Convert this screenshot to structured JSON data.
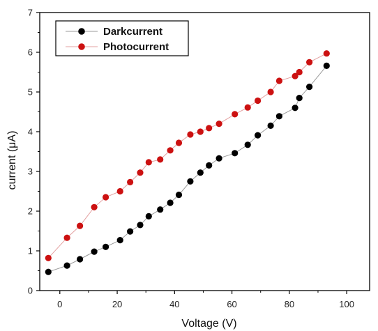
{
  "chart_data": {
    "type": "scatter",
    "xlabel": "Voltage (V)",
    "ylabel": "current (μA)",
    "xlim": [
      -7,
      108
    ],
    "ylim": [
      0,
      7
    ],
    "xticks": [
      0,
      20,
      40,
      60,
      80,
      100
    ],
    "yticks": [
      0,
      1,
      2,
      3,
      4,
      5,
      6,
      7
    ],
    "grid": false,
    "legend_position": "top-left",
    "series": [
      {
        "name": "Darkcurrent",
        "color": "#000000",
        "line_color": "#9a9a9a",
        "points": [
          [
            -4,
            0.47
          ],
          [
            2.5,
            0.63
          ],
          [
            7,
            0.79
          ],
          [
            12,
            0.98
          ],
          [
            16,
            1.1
          ],
          [
            21,
            1.27
          ],
          [
            24.5,
            1.49
          ],
          [
            28,
            1.65
          ],
          [
            31,
            1.87
          ],
          [
            35,
            2.04
          ],
          [
            38.5,
            2.21
          ],
          [
            41.5,
            2.41
          ],
          [
            45.5,
            2.75
          ],
          [
            49,
            2.97
          ],
          [
            52,
            3.15
          ],
          [
            55.5,
            3.33
          ],
          [
            61,
            3.46
          ],
          [
            65.5,
            3.67
          ],
          [
            69,
            3.91
          ],
          [
            73.5,
            4.15
          ],
          [
            76.5,
            4.39
          ],
          [
            82,
            4.6
          ],
          [
            83.5,
            4.85
          ],
          [
            87,
            5.13
          ],
          [
            93,
            5.66
          ]
        ]
      },
      {
        "name": "Photocurrent",
        "color": "#cc1111",
        "line_color": "#e3a0a0",
        "points": [
          [
            -4,
            0.82
          ],
          [
            2.5,
            1.33
          ],
          [
            7,
            1.63
          ],
          [
            12,
            2.1
          ],
          [
            16,
            2.35
          ],
          [
            21,
            2.5
          ],
          [
            24.5,
            2.73
          ],
          [
            28,
            2.97
          ],
          [
            31,
            3.23
          ],
          [
            35,
            3.3
          ],
          [
            38.5,
            3.53
          ],
          [
            41.5,
            3.72
          ],
          [
            45.5,
            3.93
          ],
          [
            49,
            4.0
          ],
          [
            52,
            4.09
          ],
          [
            55.5,
            4.2
          ],
          [
            61,
            4.44
          ],
          [
            65.5,
            4.61
          ],
          [
            69,
            4.78
          ],
          [
            73.5,
            5.0
          ],
          [
            76.5,
            5.28
          ],
          [
            82,
            5.4
          ],
          [
            83.5,
            5.5
          ],
          [
            87,
            5.75
          ],
          [
            93,
            5.97
          ]
        ]
      }
    ]
  }
}
